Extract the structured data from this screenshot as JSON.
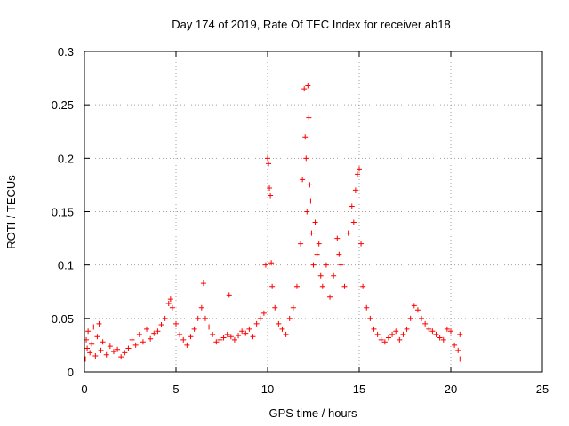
{
  "chart_data": {
    "type": "scatter",
    "title": "Day 174 of 2019, Rate Of TEC Index for receiver ab18",
    "xlabel": "GPS time / hours",
    "ylabel": "ROTI / TECUs",
    "xlim": [
      0,
      25
    ],
    "ylim": [
      0,
      0.3
    ],
    "x_ticks": [
      0,
      5,
      10,
      15,
      20,
      25
    ],
    "y_ticks": [
      0,
      0.05,
      0.1,
      0.15,
      0.2,
      0.25,
      0.3
    ],
    "x_tick_labels": [
      "0",
      "5",
      "10",
      "15",
      "20",
      "25"
    ],
    "y_tick_labels": [
      "0",
      "0.05",
      "0.1",
      "0.15",
      "0.2",
      "0.25",
      "0.3"
    ],
    "grid": true,
    "marker": "+",
    "color": "#ff0000",
    "series": [
      {
        "points": [
          [
            0.05,
            0.012
          ],
          [
            0.1,
            0.03
          ],
          [
            0.15,
            0.022
          ],
          [
            0.2,
            0.038
          ],
          [
            0.3,
            0.018
          ],
          [
            0.4,
            0.026
          ],
          [
            0.5,
            0.042
          ],
          [
            0.6,
            0.015
          ],
          [
            0.7,
            0.033
          ],
          [
            0.8,
            0.045
          ],
          [
            0.9,
            0.02
          ],
          [
            1.0,
            0.028
          ],
          [
            1.2,
            0.016
          ],
          [
            1.4,
            0.024
          ],
          [
            1.6,
            0.019
          ],
          [
            1.8,
            0.021
          ],
          [
            2.0,
            0.014
          ],
          [
            2.2,
            0.018
          ],
          [
            2.4,
            0.022
          ],
          [
            2.6,
            0.03
          ],
          [
            2.8,
            0.025
          ],
          [
            3.0,
            0.035
          ],
          [
            3.2,
            0.028
          ],
          [
            3.4,
            0.04
          ],
          [
            3.6,
            0.031
          ],
          [
            3.8,
            0.036
          ],
          [
            4.0,
            0.038
          ],
          [
            4.2,
            0.044
          ],
          [
            4.4,
            0.05
          ],
          [
            4.6,
            0.064
          ],
          [
            4.7,
            0.068
          ],
          [
            4.8,
            0.06
          ],
          [
            5.0,
            0.045
          ],
          [
            5.2,
            0.035
          ],
          [
            5.4,
            0.03
          ],
          [
            5.6,
            0.025
          ],
          [
            5.8,
            0.033
          ],
          [
            6.0,
            0.04
          ],
          [
            6.2,
            0.05
          ],
          [
            6.4,
            0.06
          ],
          [
            6.5,
            0.083
          ],
          [
            6.6,
            0.05
          ],
          [
            6.8,
            0.042
          ],
          [
            7.0,
            0.035
          ],
          [
            7.2,
            0.028
          ],
          [
            7.4,
            0.03
          ],
          [
            7.6,
            0.032
          ],
          [
            7.8,
            0.035
          ],
          [
            7.9,
            0.072
          ],
          [
            8.0,
            0.033
          ],
          [
            8.2,
            0.03
          ],
          [
            8.4,
            0.034
          ],
          [
            8.6,
            0.038
          ],
          [
            8.8,
            0.036
          ],
          [
            9.0,
            0.04
          ],
          [
            9.2,
            0.033
          ],
          [
            9.4,
            0.045
          ],
          [
            9.6,
            0.05
          ],
          [
            9.8,
            0.055
          ],
          [
            9.9,
            0.1
          ],
          [
            10.0,
            0.2
          ],
          [
            10.05,
            0.195
          ],
          [
            10.1,
            0.172
          ],
          [
            10.15,
            0.165
          ],
          [
            10.2,
            0.102
          ],
          [
            10.25,
            0.08
          ],
          [
            10.4,
            0.06
          ],
          [
            10.6,
            0.045
          ],
          [
            10.8,
            0.04
          ],
          [
            11.0,
            0.035
          ],
          [
            11.2,
            0.05
          ],
          [
            11.4,
            0.06
          ],
          [
            11.6,
            0.08
          ],
          [
            11.8,
            0.12
          ],
          [
            11.9,
            0.18
          ],
          [
            12.0,
            0.265
          ],
          [
            12.05,
            0.22
          ],
          [
            12.1,
            0.2
          ],
          [
            12.15,
            0.15
          ],
          [
            12.2,
            0.268
          ],
          [
            12.25,
            0.238
          ],
          [
            12.3,
            0.175
          ],
          [
            12.35,
            0.16
          ],
          [
            12.4,
            0.13
          ],
          [
            12.5,
            0.1
          ],
          [
            12.6,
            0.14
          ],
          [
            12.7,
            0.11
          ],
          [
            12.8,
            0.12
          ],
          [
            12.9,
            0.09
          ],
          [
            13.0,
            0.08
          ],
          [
            13.2,
            0.1
          ],
          [
            13.4,
            0.07
          ],
          [
            13.6,
            0.09
          ],
          [
            13.8,
            0.125
          ],
          [
            13.9,
            0.11
          ],
          [
            14.0,
            0.1
          ],
          [
            14.2,
            0.08
          ],
          [
            14.4,
            0.13
          ],
          [
            14.6,
            0.155
          ],
          [
            14.7,
            0.14
          ],
          [
            14.8,
            0.17
          ],
          [
            14.9,
            0.185
          ],
          [
            15.0,
            0.19
          ],
          [
            15.1,
            0.12
          ],
          [
            15.2,
            0.08
          ],
          [
            15.4,
            0.06
          ],
          [
            15.6,
            0.05
          ],
          [
            15.8,
            0.04
          ],
          [
            16.0,
            0.035
          ],
          [
            16.2,
            0.03
          ],
          [
            16.4,
            0.028
          ],
          [
            16.6,
            0.032
          ],
          [
            16.8,
            0.035
          ],
          [
            17.0,
            0.038
          ],
          [
            17.2,
            0.03
          ],
          [
            17.4,
            0.035
          ],
          [
            17.6,
            0.04
          ],
          [
            17.8,
            0.05
          ],
          [
            18.0,
            0.062
          ],
          [
            18.2,
            0.058
          ],
          [
            18.4,
            0.05
          ],
          [
            18.6,
            0.045
          ],
          [
            18.8,
            0.04
          ],
          [
            19.0,
            0.038
          ],
          [
            19.2,
            0.035
          ],
          [
            19.4,
            0.032
          ],
          [
            19.6,
            0.03
          ],
          [
            19.8,
            0.04
          ],
          [
            20.0,
            0.038
          ],
          [
            20.2,
            0.025
          ],
          [
            20.4,
            0.02
          ],
          [
            20.5,
            0.012
          ],
          [
            20.5,
            0.035
          ]
        ]
      }
    ]
  }
}
